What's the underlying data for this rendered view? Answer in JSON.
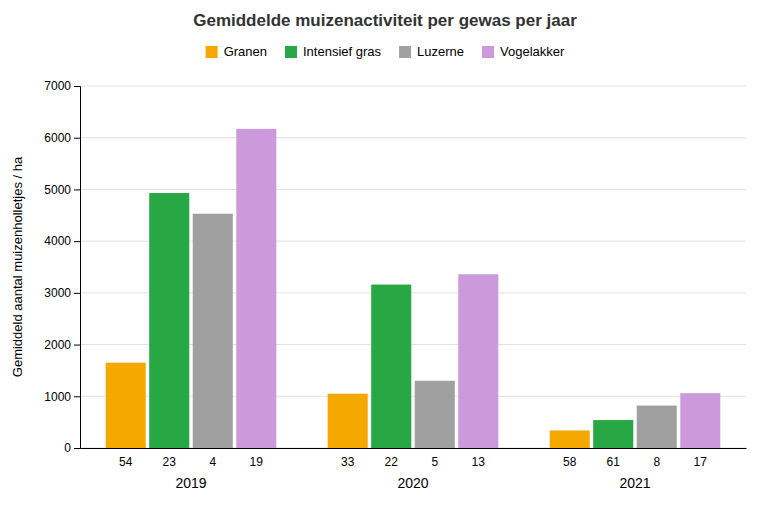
{
  "chart_data": {
    "type": "bar",
    "title": "Gemiddelde muizenactiviteit per gewas per jaar",
    "y_label": "Gemiddeld aantal muizenholletjes / ha",
    "categories": [
      "2019",
      "2020",
      "2021"
    ],
    "series": [
      {
        "name": "Granen",
        "color": "#F5A800",
        "values": [
          1650,
          1050,
          340
        ],
        "counts": [
          54,
          33,
          58
        ]
      },
      {
        "name": "Intensief gras",
        "color": "#28A745",
        "values": [
          4930,
          3160,
          540
        ],
        "counts": [
          23,
          22,
          61
        ]
      },
      {
        "name": "Luzerne",
        "color": "#A0A0A0",
        "values": [
          4530,
          1300,
          820
        ],
        "counts": [
          4,
          5,
          8
        ]
      },
      {
        "name": "Vogelakker",
        "color": "#CC99DD",
        "values": [
          6170,
          3360,
          1060
        ],
        "counts": [
          19,
          13,
          17
        ]
      }
    ],
    "ylim": [
      0,
      7000
    ],
    "yticks": [
      0,
      1000,
      2000,
      3000,
      4000,
      5000,
      6000,
      7000
    ],
    "grid": true,
    "legend": "top"
  }
}
